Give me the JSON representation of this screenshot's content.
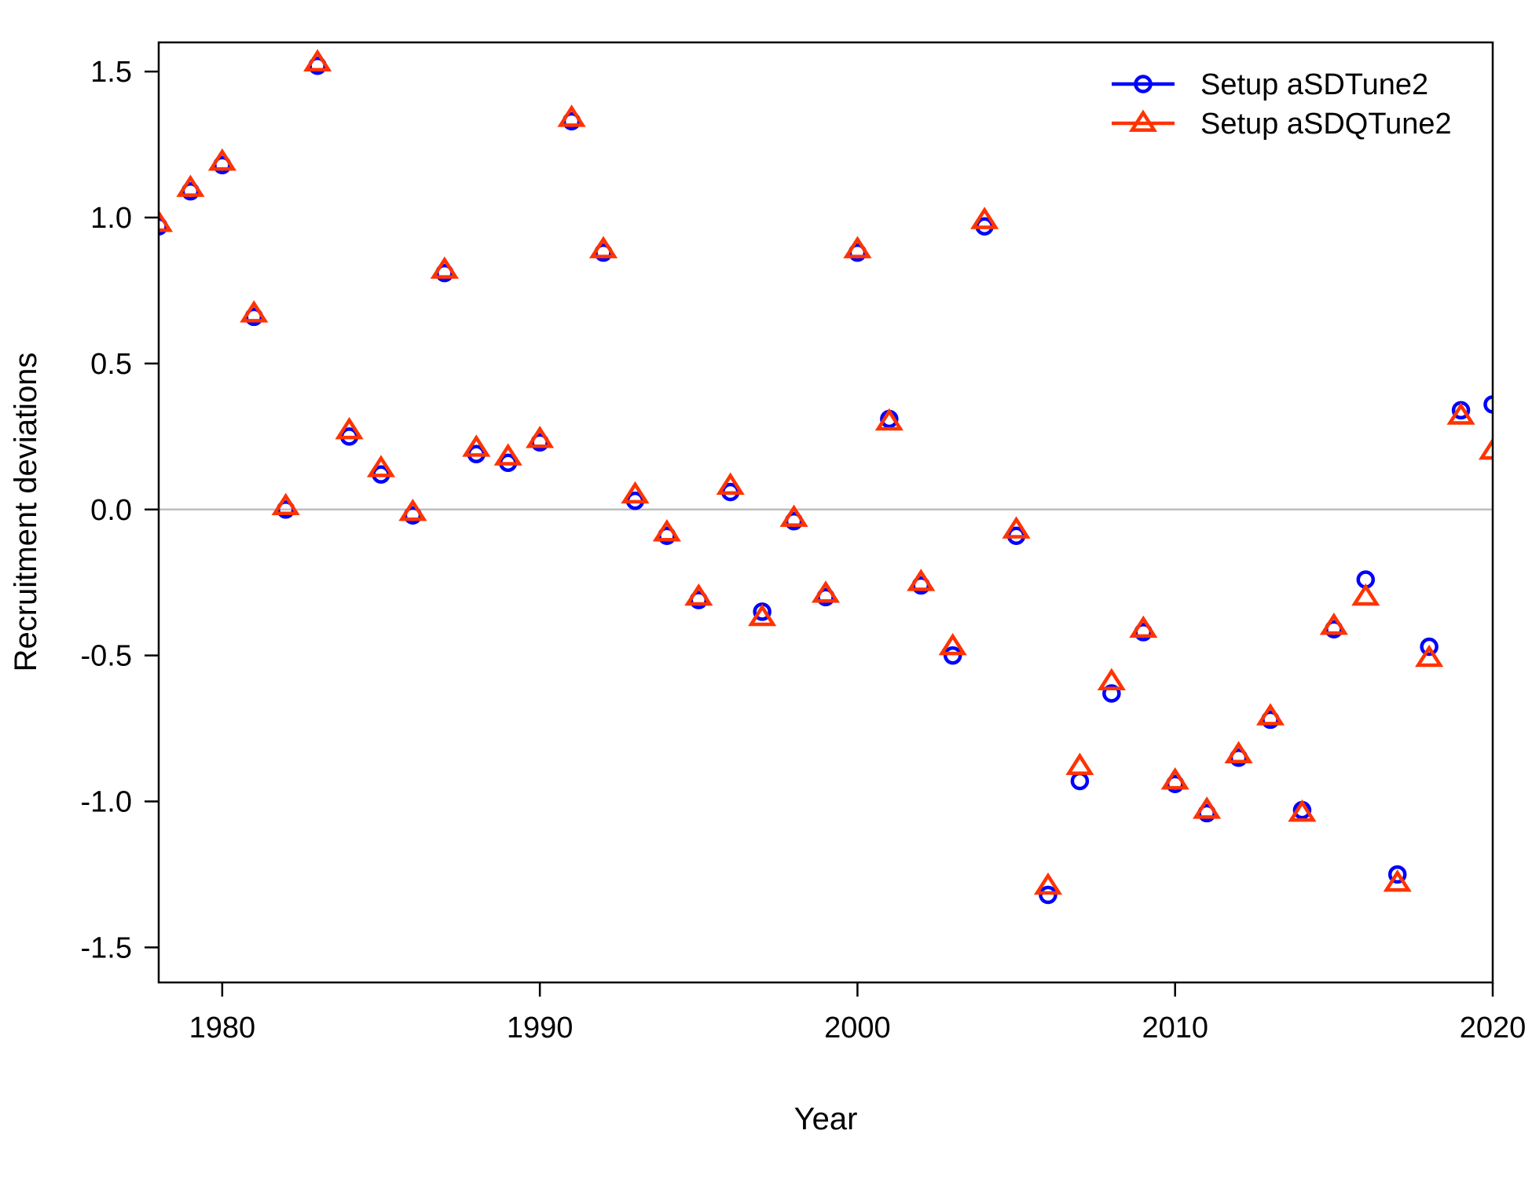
{
  "chart_data": {
    "type": "scatter",
    "xlabel": "Year",
    "ylabel": "Recruitment deviations",
    "xlim": [
      1978,
      2020
    ],
    "ylim": [
      -1.62,
      1.6
    ],
    "xticks": [
      1980,
      1990,
      2000,
      2010,
      2020
    ],
    "yticks": [
      -1.5,
      -1.0,
      -0.5,
      0.0,
      0.5,
      1.0,
      1.5
    ],
    "ytick_labels": [
      "-1.5",
      "-1.0",
      "-0.5",
      "0.0",
      "0.5",
      "1.0",
      "1.5"
    ],
    "reference_line": {
      "y": 0,
      "color": "#bebebe"
    },
    "legend_position": "top-right",
    "x": [
      1978,
      1979,
      1980,
      1981,
      1982,
      1983,
      1984,
      1985,
      1986,
      1987,
      1988,
      1989,
      1990,
      1991,
      1992,
      1993,
      1994,
      1995,
      1996,
      1997,
      1998,
      1999,
      2000,
      2001,
      2002,
      2003,
      2004,
      2005,
      2006,
      2007,
      2008,
      2009,
      2010,
      2011,
      2012,
      2013,
      2014,
      2015,
      2016,
      2017,
      2018,
      2019,
      2020
    ],
    "series": [
      {
        "name": "Setup aSDTune2",
        "color": "#0000ff",
        "marker": "circle",
        "values": [
          0.97,
          1.09,
          1.18,
          0.66,
          0.0,
          1.52,
          0.25,
          0.12,
          -0.02,
          0.81,
          0.19,
          0.16,
          0.23,
          1.33,
          0.88,
          0.03,
          -0.09,
          -0.31,
          0.06,
          -0.35,
          -0.04,
          -0.3,
          0.88,
          0.31,
          -0.26,
          -0.5,
          0.97,
          -0.09,
          -1.32,
          -0.93,
          -0.63,
          -0.42,
          -0.94,
          -1.04,
          -0.85,
          -0.72,
          -1.03,
          -0.41,
          -0.24,
          -1.25,
          -0.47,
          0.34,
          0.36
        ]
      },
      {
        "name": "Setup aSDQTune2",
        "color": "#ff3300",
        "marker": "triangle",
        "values": [
          0.98,
          1.1,
          1.19,
          0.67,
          0.01,
          1.53,
          0.27,
          0.14,
          -0.01,
          0.82,
          0.21,
          0.18,
          0.24,
          1.34,
          0.89,
          0.05,
          -0.08,
          -0.3,
          0.08,
          -0.37,
          -0.03,
          -0.29,
          0.89,
          0.3,
          -0.25,
          -0.47,
          0.99,
          -0.07,
          -1.29,
          -0.88,
          -0.59,
          -0.41,
          -0.93,
          -1.03,
          -0.84,
          -0.71,
          -1.04,
          -0.4,
          -0.3,
          -1.28,
          -0.51,
          0.32,
          0.2
        ]
      }
    ]
  }
}
